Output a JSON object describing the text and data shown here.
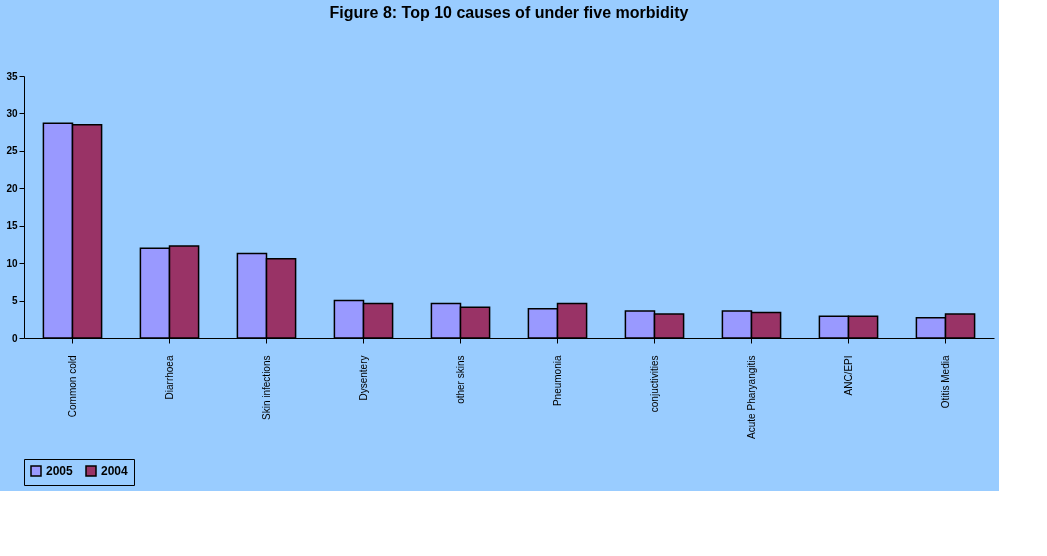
{
  "chart_data": {
    "type": "bar",
    "title": "Figure 8: Top 10 causes of under five morbidity",
    "categories": [
      "Common cold",
      "Diarrhoea",
      "Skin infections",
      "Dysentery",
      "other skins",
      "Pneumonia",
      "conjuctivities",
      "Acute Pharyangitis",
      "ANC/EPI",
      "Otitis Media"
    ],
    "series": [
      {
        "name": "2005",
        "color": "#9999ff",
        "values": [
          28.7,
          12.0,
          11.3,
          5.0,
          4.6,
          3.9,
          3.6,
          3.6,
          2.9,
          2.7
        ]
      },
      {
        "name": "2004",
        "color": "#993366",
        "values": [
          28.5,
          12.3,
          10.6,
          4.6,
          4.1,
          4.6,
          3.2,
          3.4,
          2.9,
          3.2
        ]
      }
    ],
    "ylim": [
      0,
      35
    ],
    "yticks": [
      0,
      5,
      10,
      15,
      20,
      25,
      30,
      35
    ],
    "grid": false,
    "legend": "bottom"
  }
}
